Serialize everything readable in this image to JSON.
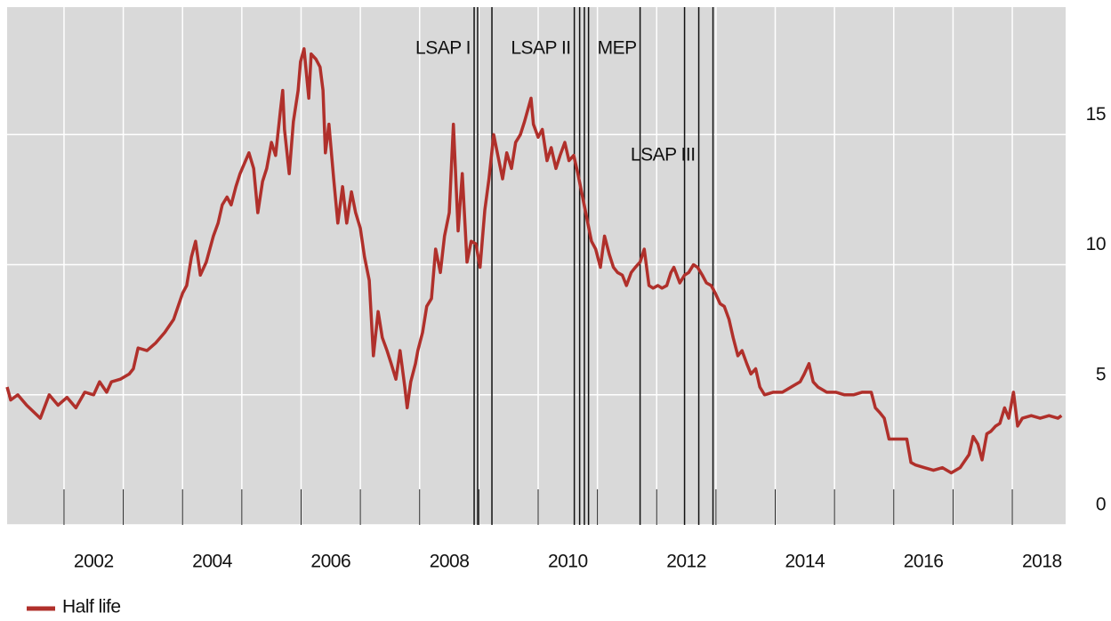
{
  "chart_data": {
    "type": "line",
    "xlim": [
      2001.04,
      2018.9
    ],
    "ylim": [
      0,
      19.9
    ],
    "xticks": [
      2002,
      2004,
      2006,
      2008,
      2010,
      2012,
      2014,
      2016,
      2018
    ],
    "xgrid": [
      2002,
      2003,
      2004,
      2005,
      2006,
      2007,
      2008,
      2009,
      2010,
      2011,
      2012,
      2013,
      2014,
      2015,
      2016,
      2017,
      2018
    ],
    "yticks": [
      0,
      5,
      10,
      15
    ],
    "grid": true,
    "legend": "bottom-left",
    "events": [
      2008.92,
      2008.98,
      2009.22,
      2010.61,
      2010.7,
      2010.78,
      2010.85,
      2011.72,
      2012.47,
      2012.71,
      2012.95
    ],
    "annotations": [
      {
        "text": "LSAP I",
        "x": 2008.92
      },
      {
        "text": "LSAP II",
        "x": 2010.61
      },
      {
        "text": "MEP",
        "x": 2011.72
      },
      {
        "text": "LSAP III",
        "x": 2012.71
      }
    ],
    "x": [
      2001.04,
      2001.1,
      2001.22,
      2001.37,
      2001.6,
      2001.75,
      2001.9,
      2002.05,
      2002.2,
      2002.35,
      2002.5,
      2002.6,
      2002.72,
      2002.8,
      2002.95,
      2003.1,
      2003.17,
      2003.25,
      2003.4,
      2003.55,
      2003.7,
      2003.85,
      2004.0,
      2004.07,
      2004.15,
      2004.22,
      2004.3,
      2004.4,
      2004.52,
      2004.6,
      2004.67,
      2004.75,
      2004.82,
      2004.9,
      2004.97,
      2005.12,
      2005.2,
      2005.27,
      2005.35,
      2005.42,
      2005.5,
      2005.57,
      2005.65,
      2005.69,
      2005.72,
      2005.8,
      2005.87,
      2005.95,
      2005.99,
      2006.05,
      2006.13,
      2006.17,
      2006.25,
      2006.32,
      2006.37,
      2006.41,
      2006.47,
      2006.55,
      2006.62,
      2006.7,
      2006.77,
      2006.85,
      2006.92,
      2007.0,
      2007.07,
      2007.15,
      2007.22,
      2007.3,
      2007.37,
      2007.45,
      2007.52,
      2007.6,
      2007.67,
      2007.75,
      2007.79,
      2007.85,
      2007.93,
      2007.97,
      2008.05,
      2008.12,
      2008.2,
      2008.27,
      2008.35,
      2008.42,
      2008.5,
      2008.57,
      2008.65,
      2008.72,
      2008.8,
      2008.87,
      2008.95,
      2009.02,
      2009.1,
      2009.17,
      2009.25,
      2009.32,
      2009.4,
      2009.47,
      2009.55,
      2009.62,
      2009.7,
      2009.77,
      2009.88,
      2009.92,
      2010.0,
      2010.07,
      2010.15,
      2010.22,
      2010.3,
      2010.37,
      2010.45,
      2010.52,
      2010.6,
      2010.67,
      2010.75,
      2010.82,
      2010.9,
      2010.97,
      2011.05,
      2011.12,
      2011.2,
      2011.27,
      2011.34,
      2011.42,
      2011.49,
      2011.57,
      2011.64,
      2011.72,
      2011.79,
      2011.87,
      2011.94,
      2012.02,
      2012.09,
      2012.17,
      2012.24,
      2012.29,
      2012.39,
      2012.47,
      2012.54,
      2012.62,
      2012.69,
      2012.77,
      2012.84,
      2012.92,
      2012.99,
      2013.07,
      2013.14,
      2013.22,
      2013.29,
      2013.37,
      2013.44,
      2013.52,
      2013.59,
      2013.67,
      2013.74,
      2013.82,
      2013.97,
      2014.12,
      2014.27,
      2014.42,
      2014.49,
      2014.57,
      2014.64,
      2014.72,
      2014.87,
      2015.02,
      2015.17,
      2015.32,
      2015.47,
      2015.62,
      2015.69,
      2015.77,
      2015.84,
      2015.92,
      2016.07,
      2016.22,
      2016.29,
      2016.37,
      2016.52,
      2016.67,
      2016.82,
      2016.97,
      2017.12,
      2017.27,
      2017.34,
      2017.42,
      2017.49,
      2017.57,
      2017.64,
      2017.72,
      2017.79,
      2017.87,
      2017.94,
      2018.02,
      2018.09,
      2018.17,
      2018.32,
      2018.47,
      2018.62,
      2018.77,
      2018.83
    ],
    "series": [
      {
        "name": "Half life",
        "color": "#b0302b",
        "values": [
          5.3,
          4.8,
          5.0,
          4.6,
          4.1,
          5.0,
          4.6,
          4.9,
          4.5,
          5.1,
          5.0,
          5.5,
          5.1,
          5.5,
          5.6,
          5.8,
          6.0,
          6.8,
          6.7,
          7.0,
          7.4,
          7.9,
          8.9,
          9.2,
          10.3,
          10.9,
          9.6,
          10.1,
          11.1,
          11.6,
          12.3,
          12.6,
          12.3,
          13.0,
          13.5,
          14.3,
          13.7,
          12.0,
          13.2,
          13.7,
          14.7,
          14.2,
          15.9,
          16.7,
          15.2,
          13.5,
          15.5,
          16.7,
          17.8,
          18.3,
          16.4,
          18.1,
          17.9,
          17.6,
          16.7,
          14.3,
          15.4,
          13.3,
          11.6,
          13.0,
          11.6,
          12.8,
          12.0,
          11.4,
          10.3,
          9.4,
          6.5,
          8.2,
          7.2,
          6.7,
          6.2,
          5.6,
          6.7,
          5.3,
          4.5,
          5.5,
          6.2,
          6.7,
          7.4,
          8.4,
          8.7,
          10.6,
          9.7,
          11.1,
          12.0,
          15.4,
          11.3,
          13.5,
          10.1,
          10.9,
          10.8,
          9.9,
          12.1,
          13.3,
          15.0,
          14.2,
          13.3,
          14.3,
          13.7,
          14.7,
          15.0,
          15.5,
          16.4,
          15.4,
          14.9,
          15.2,
          14.0,
          14.5,
          13.7,
          14.2,
          14.7,
          14.0,
          14.2,
          13.5,
          12.6,
          11.8,
          10.9,
          10.6,
          9.9,
          11.1,
          10.4,
          9.9,
          9.7,
          9.6,
          9.2,
          9.7,
          9.9,
          10.1,
          10.6,
          9.2,
          9.1,
          9.2,
          9.1,
          9.2,
          9.7,
          9.9,
          9.3,
          9.6,
          9.7,
          10.0,
          9.9,
          9.6,
          9.3,
          9.2,
          8.9,
          8.5,
          8.4,
          7.9,
          7.2,
          6.5,
          6.7,
          6.2,
          5.8,
          6.0,
          5.3,
          5.0,
          5.1,
          5.1,
          5.3,
          5.5,
          5.8,
          6.2,
          5.5,
          5.3,
          5.1,
          5.1,
          5.0,
          5.0,
          5.1,
          5.1,
          4.5,
          4.3,
          4.1,
          3.3,
          3.3,
          3.3,
          2.4,
          2.3,
          2.2,
          2.1,
          2.2,
          2.0,
          2.2,
          2.7,
          3.4,
          3.1,
          2.5,
          3.5,
          3.6,
          3.8,
          3.9,
          4.5,
          4.1,
          5.1,
          3.8,
          4.1,
          4.2,
          4.1,
          4.2,
          4.1,
          4.2
        ]
      }
    ]
  }
}
